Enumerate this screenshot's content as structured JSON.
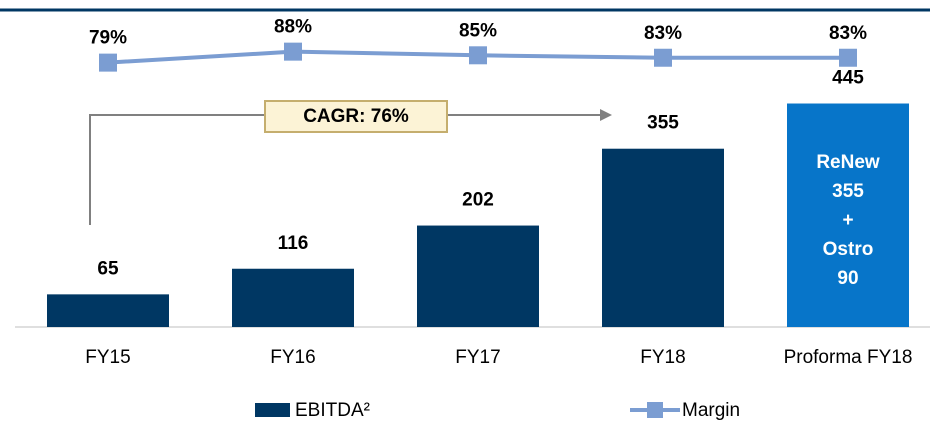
{
  "chart_data": {
    "type": "bar",
    "categories": [
      "FY15",
      "FY16",
      "FY17",
      "FY18",
      "Proforma FY18"
    ],
    "series": [
      {
        "name": "EBITDA²",
        "type": "bar",
        "color": "#003763",
        "point_colors": [
          "#003763",
          "#003763",
          "#003763",
          "#003763",
          "#0775c9"
        ],
        "values": [
          65,
          116,
          202,
          355,
          445
        ]
      },
      {
        "name": "Margin",
        "type": "line",
        "axis": "y2",
        "color": "#7b9dd2",
        "values": [
          79,
          88,
          85,
          83,
          83
        ],
        "value_labels": [
          "79%",
          "88%",
          "85%",
          "83%",
          "83%"
        ]
      }
    ],
    "ylim": [
      0,
      450
    ],
    "y2lim": [
      0,
      100
    ],
    "annotations": [
      "CAGR: 76%"
    ],
    "bar_text": [
      "ReNew",
      "355",
      "+",
      "Ostro",
      "90"
    ]
  }
}
